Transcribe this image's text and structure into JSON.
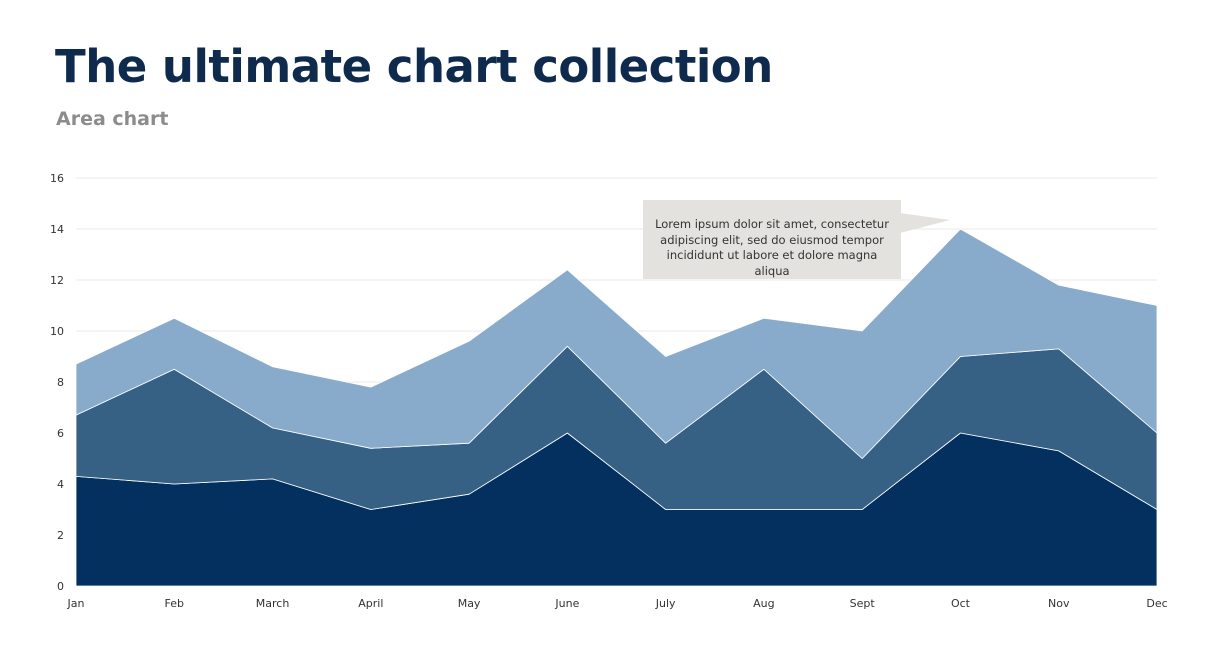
{
  "header": {
    "title": "The ultimate chart collection",
    "subtitle": "Area chart"
  },
  "callout": {
    "text": "Lorem ipsum dolor sit amet, consectetur adipiscing elit, sed do eiusmod tempor incididunt ut labore et dolore magna aliqua"
  },
  "chart_data": {
    "type": "area",
    "stacked": true,
    "categories": [
      "Jan",
      "Feb",
      "March",
      "April",
      "May",
      "June",
      "July",
      "Aug",
      "Sept",
      "Oct",
      "Nov",
      "Dec"
    ],
    "ylim": [
      0,
      16
    ],
    "yticks": [
      0,
      2,
      4,
      6,
      8,
      10,
      12,
      14,
      16
    ],
    "grid": true,
    "legend": "none",
    "series": [
      {
        "color": "#03305f",
        "values": [
          4.3,
          4.0,
          4.2,
          3.0,
          3.6,
          6.0,
          3.0,
          3.0,
          3.0,
          6.0,
          5.3,
          3.0
        ]
      },
      {
        "color": "#366185",
        "values": [
          2.4,
          4.5,
          2.0,
          2.4,
          2.0,
          3.4,
          2.6,
          5.5,
          2.0,
          3.0,
          4.0,
          3.0
        ]
      },
      {
        "color": "#89abcb",
        "values": [
          2.0,
          2.0,
          2.4,
          2.4,
          4.0,
          3.0,
          3.4,
          2.0,
          5.0,
          5.0,
          2.5,
          5.0
        ]
      }
    ]
  }
}
